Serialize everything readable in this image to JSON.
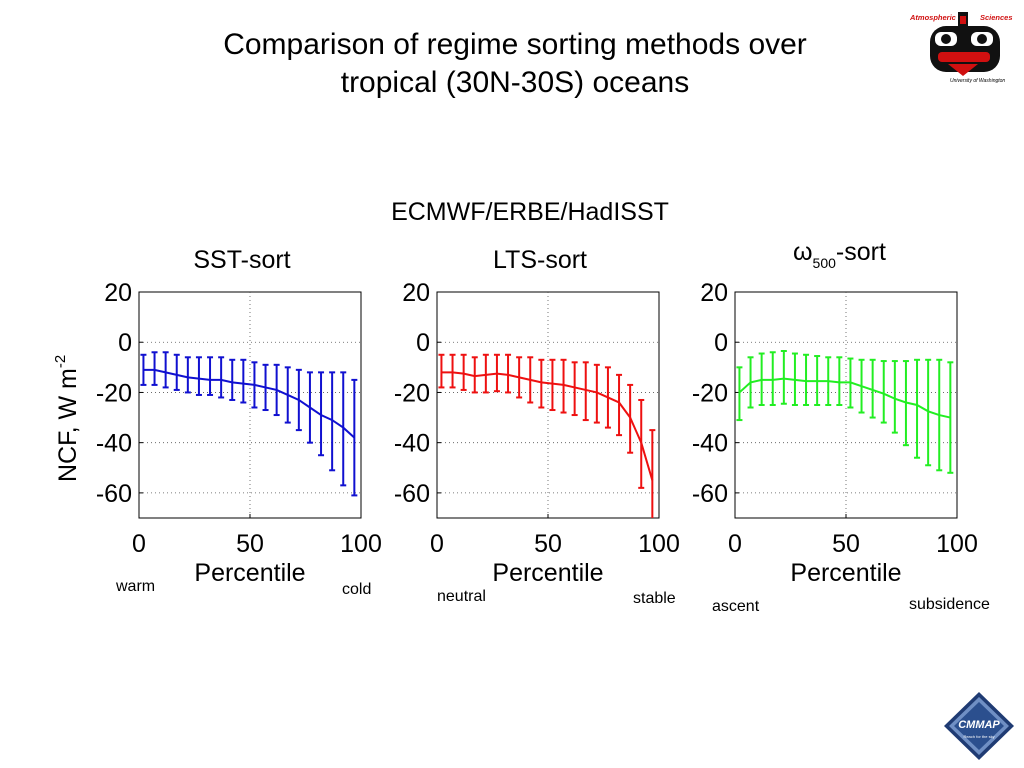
{
  "slide": {
    "title_line1": "Comparison of regime sorting methods over",
    "title_line2": "tropical (30N-30S) oceans",
    "figure_title": "ECMWF/ERBE/HadISST",
    "ylabel_main": "NCF, W m",
    "ylabel_sup": "-2",
    "logo_uw": {
      "top_left": "Atmospheric",
      "top_right": "Sciences",
      "bottom": "University of Washington"
    },
    "logo_cmmap": {
      "name": "CMMAP",
      "tagline": "Reach for the sky"
    }
  },
  "colors": {
    "sst": "#1010d0",
    "lts": "#ee1010",
    "omega": "#22ee22"
  },
  "chart_data": [
    {
      "type": "line",
      "title": "SST-sort",
      "xlabel": "Percentile",
      "xlim": [
        0,
        100
      ],
      "xticks": [
        0,
        50,
        100
      ],
      "ylabel": "NCF, W m^-2",
      "ylim": [
        -70,
        20
      ],
      "yticks": [
        20,
        0,
        -20,
        -40,
        -60
      ],
      "grid": true,
      "series": [
        {
          "x": [
            2,
            7,
            12,
            17,
            22,
            27,
            32,
            37,
            42,
            47,
            52,
            57,
            62,
            67,
            72,
            77,
            82,
            87,
            92,
            97
          ],
          "y": [
            -11,
            -11,
            -12,
            -13,
            -14,
            -14.5,
            -15,
            -15,
            -16,
            -16.5,
            -17,
            -18,
            -19,
            -21,
            -23,
            -26,
            -29,
            -31,
            -34,
            -38
          ],
          "err_low": [
            -17,
            -17,
            -18,
            -19,
            -20,
            -21,
            -21,
            -22,
            -23,
            -24,
            -26,
            -27,
            -29,
            -32,
            -35,
            -40,
            -45,
            -51,
            -57,
            -61
          ],
          "err_high": [
            -5,
            -4,
            -4,
            -5,
            -6,
            -6,
            -6,
            -6,
            -7,
            -7,
            -8,
            -9,
            -9,
            -10,
            -11,
            -12,
            -12,
            -12,
            -12,
            -15
          ]
        }
      ],
      "annotations": [
        "warm",
        "cold"
      ]
    },
    {
      "type": "line",
      "title": "LTS-sort",
      "xlabel": "Percentile",
      "xlim": [
        0,
        100
      ],
      "xticks": [
        0,
        50,
        100
      ],
      "ylim": [
        -70,
        20
      ],
      "yticks": [
        20,
        0,
        -20,
        -40,
        -60
      ],
      "grid": true,
      "series": [
        {
          "x": [
            2,
            7,
            12,
            17,
            22,
            27,
            32,
            37,
            42,
            47,
            52,
            57,
            62,
            67,
            72,
            77,
            82,
            87,
            92,
            97
          ],
          "y": [
            -12,
            -12,
            -12.5,
            -13.5,
            -13,
            -12.5,
            -13,
            -14,
            -15,
            -16,
            -16.5,
            -17,
            -18,
            -19,
            -20,
            -22,
            -24,
            -30,
            -40,
            -55
          ],
          "err_low": [
            -18,
            -18,
            -19,
            -20,
            -20,
            -19.5,
            -20,
            -22,
            -24,
            -26,
            -27,
            -28,
            -29,
            -31,
            -32,
            -34,
            -37,
            -44,
            -58,
            -71
          ],
          "err_high": [
            -5,
            -5,
            -5,
            -6,
            -5,
            -5,
            -5,
            -6,
            -6,
            -7,
            -7,
            -7,
            -8,
            -8,
            -9,
            -10,
            -13,
            -17,
            -23,
            -35
          ]
        }
      ],
      "annotations": [
        "neutral",
        "stable"
      ]
    },
    {
      "type": "line",
      "title_prefix": "ω",
      "title_sub": "500",
      "title_suffix": "-sort",
      "xlabel": "Percentile",
      "xlim": [
        0,
        100
      ],
      "xticks": [
        0,
        50,
        100
      ],
      "ylim": [
        -70,
        20
      ],
      "yticks": [
        20,
        0,
        -20,
        -40,
        -60
      ],
      "grid": true,
      "series": [
        {
          "x": [
            2,
            7,
            12,
            17,
            22,
            27,
            32,
            37,
            42,
            47,
            52,
            57,
            62,
            67,
            72,
            77,
            82,
            87,
            92,
            97
          ],
          "y": [
            -20,
            -16,
            -15,
            -15,
            -14.5,
            -15,
            -15.5,
            -15.5,
            -15.5,
            -16,
            -16,
            -17.5,
            -19,
            -20.5,
            -22.5,
            -24,
            -25,
            -27.5,
            -29,
            -30
          ],
          "err_low": [
            -31,
            -26,
            -25,
            -25,
            -24.5,
            -25,
            -25,
            -25,
            -25,
            -25,
            -26,
            -28,
            -30,
            -32,
            -36,
            -41,
            -46,
            -49,
            -51,
            -52
          ],
          "err_high": [
            -10,
            -6,
            -4.5,
            -4,
            -3.5,
            -4.5,
            -5,
            -5.5,
            -6,
            -6,
            -6.5,
            -7,
            -7,
            -7.5,
            -7.5,
            -7.5,
            -7,
            -7,
            -7,
            -8
          ]
        }
      ],
      "annotations": [
        "ascent",
        "subsidence"
      ]
    }
  ]
}
